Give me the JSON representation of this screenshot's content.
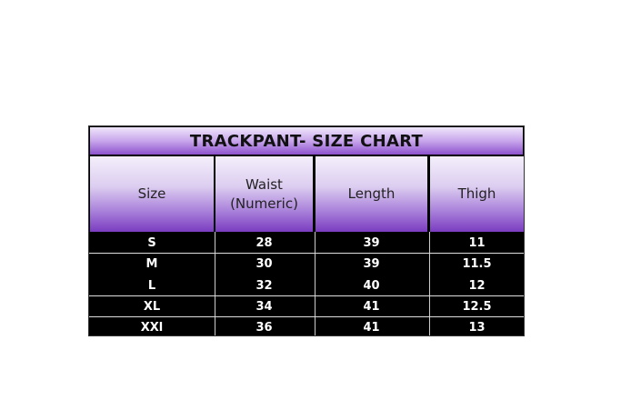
{
  "title": "TRACKPANT- SIZE CHART",
  "headers": [
    "Size",
    "Waist (Numeric)",
    "Length",
    "Thigh"
  ],
  "rows": [
    [
      "S",
      "28",
      "39",
      "11"
    ],
    [
      "M",
      "30",
      "39",
      "11.5"
    ],
    [
      "L",
      "32",
      "40",
      "12"
    ],
    [
      "XL",
      "34",
      "41",
      "12.5"
    ],
    [
      "XXl",
      "36",
      "41",
      "13"
    ]
  ],
  "colors": {
    "header_purple": "#7a3cc0",
    "body_bg": "#000000",
    "body_text": "#ffffff"
  }
}
